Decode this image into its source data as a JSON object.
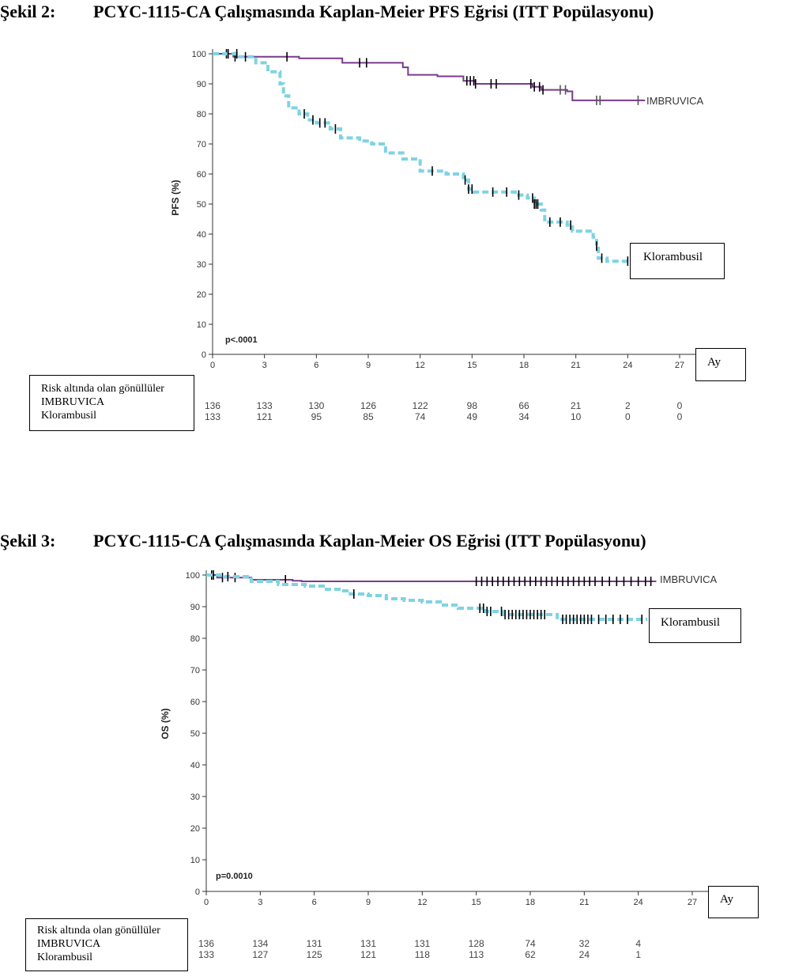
{
  "figures": [
    {
      "number": "Şekil 2:",
      "title": "PCYC-1115-CA Çalışmasında Kaplan-Meier PFS Eğrisi (ITT Popülasyonu)",
      "risk_header": "Risk altında olan gönüllüler",
      "risk_rows": [
        {
          "label": "IMBRUVICA",
          "values": [
            "136",
            "133",
            "130",
            "126",
            "122",
            "98",
            "66",
            "21",
            "2",
            "0"
          ]
        },
        {
          "label": "Klorambusil",
          "values": [
            "133",
            "121",
            "95",
            "85",
            "74",
            "49",
            "34",
            "10",
            "0",
            "0"
          ]
        }
      ]
    },
    {
      "number": "Şekil 3:",
      "title": "PCYC-1115-CA Çalışmasında Kaplan-Meier OS Eğrisi (ITT Popülasyonu)",
      "risk_header": "Risk altında olan gönüllüler",
      "risk_rows": [
        {
          "label": "IMBRUVICA",
          "values": [
            "136",
            "134",
            "131",
            "131",
            "131",
            "128",
            "74",
            "32",
            "4",
            ""
          ]
        },
        {
          "label": "Klorambusil",
          "values": [
            "133",
            "127",
            "125",
            "121",
            "118",
            "113",
            "62",
            "24",
            "1",
            ""
          ]
        }
      ]
    }
  ],
  "colors": {
    "imbruvica": "#7a3a8c",
    "klorambusil": "#7fd3e3",
    "axis": "#333333",
    "censor": "#000000"
  },
  "chart_data": [
    {
      "type": "line",
      "ylabel": "PFS (%)",
      "xlabel": "Ay",
      "ylim": [
        0,
        100
      ],
      "xlim": [
        0,
        27
      ],
      "x_ticks": [
        "0",
        "3",
        "6",
        "9",
        "12",
        "15",
        "18",
        "21",
        "24",
        "27"
      ],
      "y_ticks": [
        "0",
        "10",
        "20",
        "30",
        "40",
        "50",
        "60",
        "70",
        "80",
        "90",
        "100"
      ],
      "annotation": "p<.0001",
      "series": [
        {
          "name": "IMBRUVICA",
          "style": "solid-step",
          "points": [
            [
              0,
              100
            ],
            [
              1.2,
              99
            ],
            [
              4,
              99
            ],
            [
              5,
              98.5
            ],
            [
              7.5,
              97
            ],
            [
              11,
              95.5
            ],
            [
              11.3,
              93
            ],
            [
              13,
              92.5
            ],
            [
              14.5,
              91
            ],
            [
              15.2,
              90
            ],
            [
              18.5,
              89
            ],
            [
              19,
              88
            ],
            [
              20.5,
              87.5
            ],
            [
              20.8,
              84.5
            ],
            [
              25,
              84.5
            ]
          ],
          "censor_x": [
            0.8,
            1.3,
            1.9,
            4.3,
            8.5,
            8.9,
            14.7,
            14.9,
            15.1,
            15.2,
            16.1,
            16.4,
            18.4,
            18.6,
            18.9,
            19.1,
            20.1,
            20.4,
            22.2,
            22.4,
            24.6
          ]
        },
        {
          "name": "Klorambusil",
          "style": "dashed-step",
          "points": [
            [
              0,
              100
            ],
            [
              1.5,
              99
            ],
            [
              2.5,
              97
            ],
            [
              3.2,
              94
            ],
            [
              3.9,
              90
            ],
            [
              4.1,
              86
            ],
            [
              4.4,
              82
            ],
            [
              5,
              80
            ],
            [
              5.5,
              78
            ],
            [
              6,
              77
            ],
            [
              6.8,
              75
            ],
            [
              7.4,
              72
            ],
            [
              8.5,
              71
            ],
            [
              9.2,
              70
            ],
            [
              10,
              67
            ],
            [
              11,
              65
            ],
            [
              12,
              61
            ],
            [
              13.5,
              60
            ],
            [
              14.5,
              58
            ],
            [
              14.8,
              55
            ],
            [
              15.1,
              54
            ],
            [
              17.5,
              53
            ],
            [
              18.2,
              52
            ],
            [
              18.6,
              50
            ],
            [
              19,
              48
            ],
            [
              19.2,
              44
            ],
            [
              20.5,
              43
            ],
            [
              20.8,
              41
            ],
            [
              22,
              39
            ],
            [
              22.2,
              36
            ],
            [
              22.3,
              32
            ],
            [
              22.8,
              31
            ],
            [
              24,
              31
            ]
          ],
          "censor_x": [
            0.9,
            1.4,
            5.3,
            5.8,
            6.2,
            6.5,
            7.1,
            12.7,
            14.6,
            14.8,
            15,
            16.2,
            17,
            17.7,
            18.5,
            18.6,
            18.7,
            18.8,
            19.5,
            20.1,
            20.7,
            22.2,
            22.5,
            24
          ]
        }
      ]
    },
    {
      "type": "line",
      "ylabel": "OS (%)",
      "xlabel": "Ay",
      "ylim": [
        0,
        100
      ],
      "xlim": [
        0,
        27
      ],
      "x_ticks": [
        "0",
        "3",
        "6",
        "9",
        "12",
        "15",
        "18",
        "21",
        "24",
        "27"
      ],
      "y_ticks": [
        "0",
        "10",
        "20",
        "30",
        "40",
        "50",
        "60",
        "70",
        "80",
        "90",
        "100"
      ],
      "annotation": "p=0.0010",
      "series": [
        {
          "name": "IMBRUVICA",
          "style": "solid-step",
          "points": [
            [
              0,
              100
            ],
            [
              0.6,
              99.2
            ],
            [
              2.5,
              98.5
            ],
            [
              4.8,
              98.2
            ],
            [
              5.3,
              98
            ],
            [
              25,
              98
            ]
          ],
          "censor_x": [
            0.3,
            0.9,
            1.6,
            4.4,
            15,
            15.3,
            15.6,
            15.9,
            16.2,
            16.5,
            16.8,
            17.1,
            17.4,
            17.7,
            18,
            18.3,
            18.6,
            18.9,
            19.2,
            19.5,
            19.8,
            20.1,
            20.4,
            20.7,
            21.0,
            21.3,
            21.6,
            22.0,
            22.4,
            22.8,
            23.2,
            23.6,
            24.0,
            24.4,
            24.7
          ]
        },
        {
          "name": "Klorambusil",
          "style": "dashed-step",
          "points": [
            [
              0,
              100
            ],
            [
              1,
              99.5
            ],
            [
              2.5,
              98
            ],
            [
              4,
              97
            ],
            [
              5.5,
              96.5
            ],
            [
              6.5,
              95.5
            ],
            [
              7.5,
              95
            ],
            [
              8,
              94
            ],
            [
              9,
              93.5
            ],
            [
              10,
              92.5
            ],
            [
              11,
              92
            ],
            [
              12,
              91.5
            ],
            [
              13,
              90.5
            ],
            [
              14,
              89.5
            ],
            [
              15,
              89.5
            ],
            [
              15.5,
              88.5
            ],
            [
              16.5,
              87.5
            ],
            [
              19.5,
              86
            ],
            [
              24.5,
              86
            ]
          ],
          "censor_x": [
            0.4,
            1.2,
            8.2,
            15.2,
            15.4,
            15.6,
            15.8,
            16.4,
            16.6,
            16.8,
            17.0,
            17.2,
            17.4,
            17.6,
            17.8,
            18.0,
            18.2,
            18.4,
            18.6,
            18.8,
            19.8,
            20.0,
            20.2,
            20.4,
            20.6,
            20.8,
            21.0,
            21.2,
            21.4,
            21.8,
            22.2,
            22.6,
            23.0,
            23.4,
            24.2
          ]
        }
      ]
    }
  ]
}
